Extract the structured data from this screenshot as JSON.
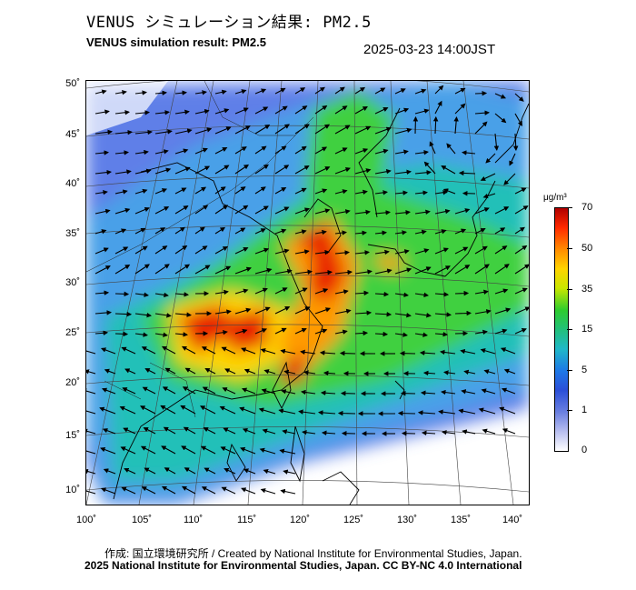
{
  "header": {
    "title_jp": "VENUS シミュレーション結果: PM2.5",
    "title_en": "VENUS simulation result: PM2.5",
    "timestamp": "2025-03-23 14:00JST"
  },
  "map": {
    "lat_labels": [
      "50˚",
      "45˚",
      "40˚",
      "35˚",
      "30˚",
      "25˚",
      "20˚",
      "15˚",
      "10˚"
    ],
    "lon_labels": [
      "100˚",
      "105˚",
      "110˚",
      "115˚",
      "120˚",
      "125˚",
      "130˚",
      "135˚",
      "140˚"
    ]
  },
  "colorbar": {
    "unit": "μg/m³",
    "ticks": [
      "70",
      "50",
      "35",
      "15",
      "5",
      "1",
      "0"
    ],
    "colors": {
      "very_high": "#b00000",
      "high": "#ff2a00",
      "elevated": "#ffd400",
      "moderate": "#2ecc2e",
      "low": "#20b8c8",
      "very_low": "#2b4fd8",
      "minimal": "#ffffff"
    }
  },
  "footer": {
    "credit": "作成: 国立環境研究所 / Created by National Institute for Environmental Studies, Japan.",
    "license": "2025 National Institute for Environmental Studies, Japan. CC BY-NC 4.0 International"
  }
}
